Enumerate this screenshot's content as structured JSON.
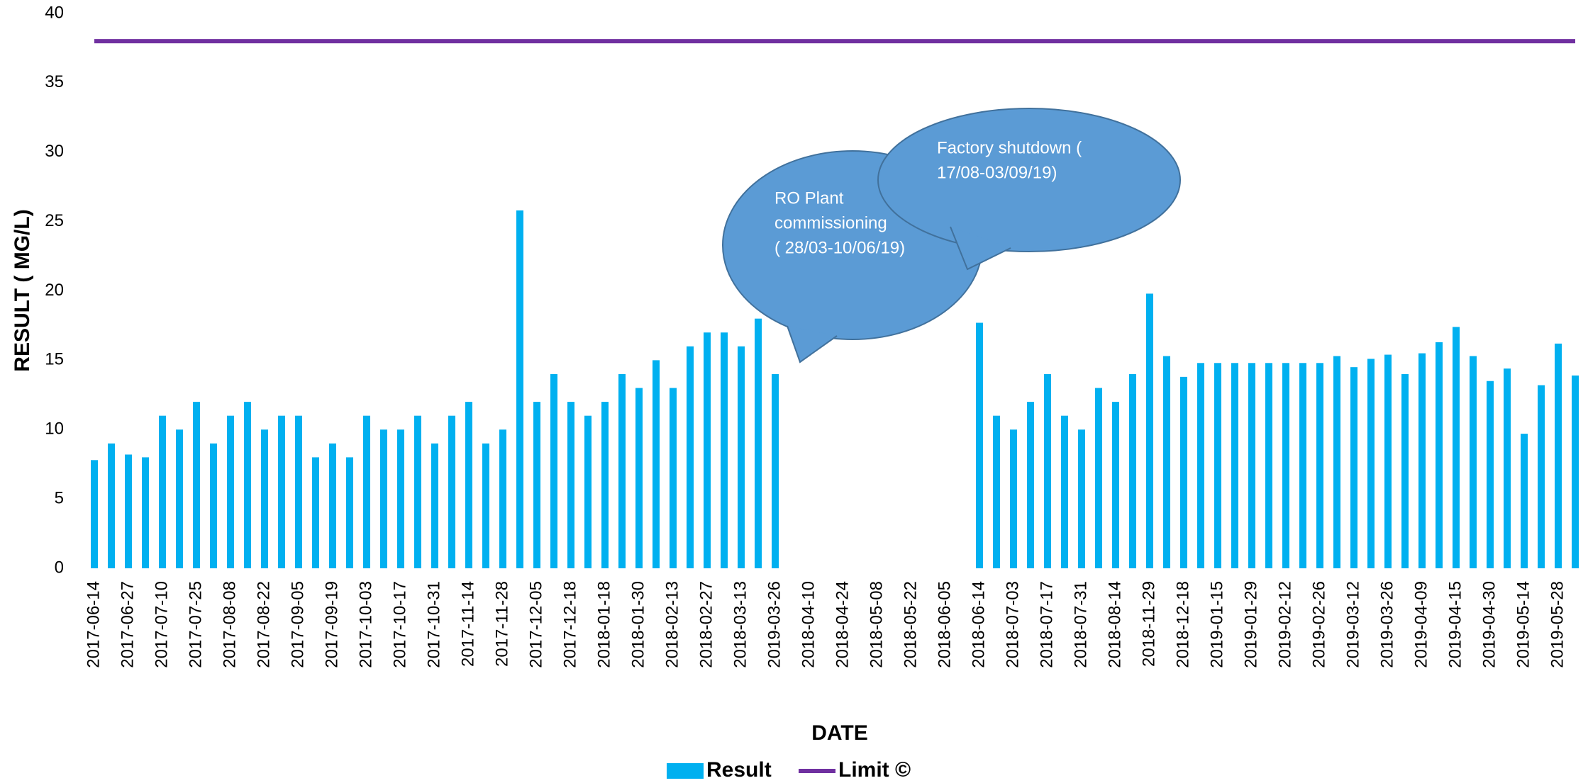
{
  "chart_data": {
    "type": "bar",
    "categories": [
      "2017-06-14",
      null,
      "2017-06-27",
      null,
      "2017-07-10",
      null,
      "2017-07-25",
      null,
      "2017-08-08",
      null,
      "2017-08-22",
      null,
      "2017-09-05",
      null,
      "2017-09-19",
      null,
      "2017-10-03",
      null,
      "2017-10-17",
      null,
      "2017-10-31",
      null,
      "2017-11-14",
      null,
      "2017-11-28",
      null,
      "2017-12-05",
      null,
      "2017-12-18",
      null,
      "2018-01-18",
      null,
      "2018-01-30",
      null,
      "2018-02-13",
      null,
      "2018-02-27",
      null,
      "2018-03-13",
      null,
      "2019-03-26",
      null,
      "2018-04-10",
      null,
      "2018-04-24",
      null,
      "2018-05-08",
      null,
      "2018-05-22",
      null,
      "2018-06-05",
      null,
      "2018-06-14",
      null,
      "2018-07-03",
      null,
      "2018-07-17",
      null,
      "2018-07-31",
      null,
      "2018-08-14",
      null,
      "2018-11-29",
      null,
      "2018-12-18",
      null,
      "2019-01-15",
      null,
      "2019-01-29",
      null,
      "2019-02-12",
      null,
      "2019-02-26",
      null,
      "2019-03-12",
      null,
      "2019-03-26",
      null,
      "2019-04-09",
      null,
      "2019-04-15",
      null,
      "2019-04-30",
      null,
      "2019-05-14",
      null,
      "2019-05-28",
      null
    ],
    "series": [
      {
        "name": "Result",
        "type": "bar",
        "color": "#00b0f0",
        "values": [
          7.8,
          9,
          8.2,
          8,
          11,
          10,
          12,
          9,
          11,
          12,
          10,
          11,
          11,
          8,
          9,
          8,
          11,
          10,
          10,
          11,
          9,
          11,
          12,
          9,
          10,
          25.8,
          12,
          14,
          12,
          11,
          12,
          14,
          13,
          15,
          13,
          16,
          17,
          17,
          16,
          18,
          14,
          null,
          null,
          null,
          null,
          null,
          null,
          null,
          null,
          null,
          null,
          null,
          17.7,
          11,
          10,
          12,
          14,
          11,
          10,
          13,
          12,
          14,
          19.8,
          15.3,
          13.8,
          14.8,
          14.8,
          14.8,
          14.8,
          14.8,
          14.8,
          14.8,
          14.8,
          15.3,
          14.5,
          15.1,
          15.4,
          14,
          15.5,
          16.3,
          17.4,
          15.3,
          13.5,
          14.4,
          9.7,
          13.2,
          16.2,
          13.9
        ]
      },
      {
        "name": "Limit ©",
        "type": "line",
        "color": "#7030a0",
        "values": [
          38,
          38,
          38,
          38,
          38,
          38,
          38,
          38,
          38,
          38,
          38,
          38,
          38,
          38,
          38,
          38,
          38,
          38,
          38,
          38,
          38,
          38,
          38,
          38,
          38,
          38,
          38,
          38,
          38,
          38,
          38,
          38,
          38,
          38,
          38,
          38,
          38,
          38,
          38,
          38,
          38,
          38,
          38,
          38,
          38,
          38,
          38,
          38,
          38,
          38,
          38,
          38,
          38,
          38,
          38,
          38,
          38,
          38,
          38,
          38,
          38,
          38,
          38,
          38,
          38,
          38,
          38,
          38,
          38,
          38,
          38,
          38,
          38,
          38,
          38,
          38,
          38,
          38,
          38,
          38,
          38,
          38,
          38,
          38,
          38,
          38,
          38,
          38
        ]
      }
    ],
    "ylim": [
      0,
      40
    ],
    "yticks": [
      0,
      5,
      10,
      15,
      20,
      25,
      30,
      35,
      40
    ],
    "x_label": "DATE",
    "y_label": "RESULT ( MG/L)",
    "grid": false,
    "legend": "bottom",
    "annotations": [
      {
        "lines": [
          "RO Plant",
          "commissioning",
          "( 28/03-10/06/19)"
        ]
      },
      {
        "lines": [
          "Factory shutdown (",
          "17/08-03/09/19)"
        ]
      }
    ]
  }
}
